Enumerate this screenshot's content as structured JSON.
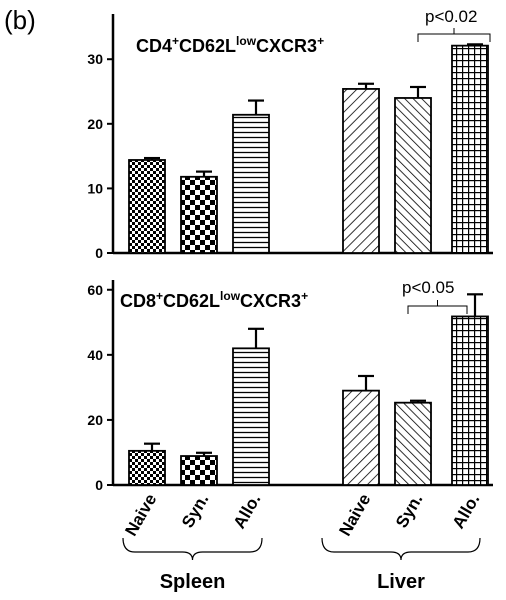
{
  "panel_label": "(b)",
  "chart_data": [
    {
      "type": "bar",
      "title_parts": [
        "CD4",
        "+",
        "CD62L",
        "low",
        "CXCR3",
        "+"
      ],
      "categories": [
        "Naive",
        "Syn.",
        "Allo.",
        "Naive",
        "Syn.",
        "Allo."
      ],
      "values": [
        14.4,
        11.8,
        21.4,
        25.4,
        24.0,
        32.1
      ],
      "errors": [
        0.3,
        0.8,
        2.2,
        0.8,
        1.7,
        0.2
      ],
      "patterns": [
        "checker-small",
        "checker-large",
        "hstripes",
        "diag-right",
        "diag-left",
        "grid"
      ],
      "yticks": [
        0,
        10,
        20,
        30
      ],
      "ylim": [
        0,
        37
      ],
      "annotation": "p<0.02"
    },
    {
      "type": "bar",
      "title_parts": [
        "CD8",
        "+",
        "CD62L",
        "low",
        "CXCR3",
        "+"
      ],
      "categories": [
        "Naive",
        "Syn.",
        "Allo.",
        "Naive",
        "Syn.",
        "Allo."
      ],
      "values": [
        10.5,
        8.9,
        42.0,
        29.0,
        25.3,
        51.8
      ],
      "errors": [
        2.2,
        1.0,
        6.0,
        4.5,
        0.6,
        6.8
      ],
      "patterns": [
        "checker-small",
        "checker-large",
        "hstripes",
        "diag-right",
        "diag-left",
        "grid"
      ],
      "yticks": [
        0,
        20,
        40,
        60
      ],
      "ylim": [
        0,
        63
      ],
      "annotation": "p<0.05"
    }
  ],
  "x_labels": [
    "Naive",
    "Syn.",
    "Allo.",
    "Naive",
    "Syn.",
    "Allo."
  ],
  "groups": [
    "Spleen",
    "Liver"
  ]
}
